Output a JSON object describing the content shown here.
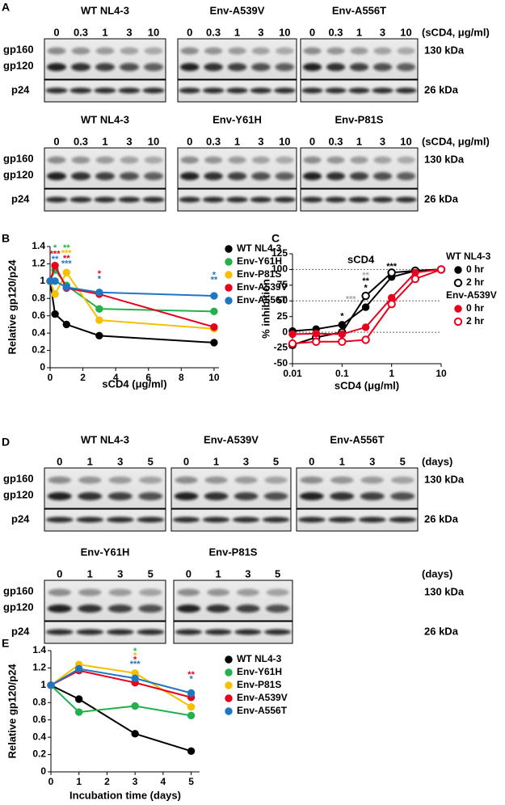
{
  "panel_labels": [
    "A",
    "B",
    "C",
    "D",
    "E"
  ],
  "blots": [
    {
      "groups": [
        "WT NL4-3",
        "Env-A539V",
        "Env-A556T"
      ],
      "lanes": [
        "0",
        "0.3",
        "1",
        "3",
        "10"
      ],
      "unit": "(sCD4, μg/ml)",
      "bands": [
        "gp160",
        "gp120"
      ],
      "loading": "p24",
      "sizes": [
        "130 kDa",
        "26 kDa"
      ]
    },
    {
      "groups": [
        "WT NL4-3",
        "Env-Y61H",
        "Env-P81S"
      ],
      "lanes": [
        "0",
        "0.3",
        "1",
        "3",
        "10"
      ],
      "unit": "(sCD4, μg/ml)",
      "bands": [
        "gp160",
        "gp120"
      ],
      "loading": "p24",
      "sizes": [
        "130 kDa",
        "26 kDa"
      ]
    },
    {
      "groups": [
        "WT NL4-3",
        "Env-A539V",
        "Env-A556T"
      ],
      "lanes": [
        "0",
        "1",
        "3",
        "5"
      ],
      "unit": "(days)",
      "bands": [
        "gp160",
        "gp120"
      ],
      "loading": "p24",
      "sizes": [
        "130 kDa",
        "26 kDa"
      ]
    },
    {
      "groups": [
        "Env-Y61H",
        "Env-P81S"
      ],
      "lanes": [
        "0",
        "1",
        "3",
        "5"
      ],
      "unit": "(days)",
      "bands": [
        "gp160",
        "gp120"
      ],
      "loading": "p24",
      "sizes": [
        "130 kDa",
        "26 kDa"
      ]
    }
  ],
  "chart_data": [
    {
      "type": "line",
      "x_label": "sCD4 (μg/ml)",
      "y_label": "Relative gp120/p24",
      "x": [
        0,
        0.3,
        1,
        3,
        10
      ],
      "xlim": [
        0,
        10.3
      ],
      "xticks": [
        0,
        2,
        4,
        6,
        8,
        10
      ],
      "ylim": [
        0,
        1.4
      ],
      "yticks": [
        0,
        0.2,
        0.4,
        0.6,
        0.8,
        1,
        1.2,
        1.4
      ],
      "series": [
        {
          "name": "WT NL4-3",
          "color": "#000000",
          "values": [
            1,
            0.62,
            0.5,
            0.37,
            0.29
          ]
        },
        {
          "name": "Env-Y61H",
          "color": "#22b14c",
          "values": [
            1,
            1.13,
            0.95,
            0.68,
            0.65
          ]
        },
        {
          "name": "Env-P81S",
          "color": "#f5c000",
          "values": [
            1,
            0.85,
            1.1,
            0.55,
            0.45
          ]
        },
        {
          "name": "Env-A539V",
          "color": "#e8001c",
          "values": [
            1,
            1.18,
            0.92,
            0.85,
            0.47
          ]
        },
        {
          "name": "Env-A556T",
          "color": "#1f77c4",
          "values": [
            1,
            1.0,
            0.93,
            0.87,
            0.83
          ]
        }
      ],
      "annotations": [
        {
          "x": 0.3,
          "y": 1.38,
          "text": "*",
          "color": "#22b14c"
        },
        {
          "x": 0.3,
          "y": 1.31,
          "text": "***",
          "color": "#e8001c"
        },
        {
          "x": 0.3,
          "y": 1.25,
          "text": "**",
          "color": "#1f77c4"
        },
        {
          "x": 1,
          "y": 1.38,
          "text": "**",
          "color": "#22b14c"
        },
        {
          "x": 1,
          "y": 1.32,
          "text": "***",
          "color": "#f5c000"
        },
        {
          "x": 1,
          "y": 1.26,
          "text": "**",
          "color": "#e8001c"
        },
        {
          "x": 1,
          "y": 1.2,
          "text": "***",
          "color": "#1f77c4"
        },
        {
          "x": 3,
          "y": 1.08,
          "text": "*",
          "color": "#e8001c"
        },
        {
          "x": 3,
          "y": 1.02,
          "text": "*",
          "color": "#1f77c4"
        },
        {
          "x": 10,
          "y": 1.07,
          "text": "*",
          "color": "#1f77c4"
        },
        {
          "x": 10,
          "y": 1.01,
          "text": "**",
          "color": "#1f77c4"
        }
      ]
    },
    {
      "type": "line",
      "title": "sCD4",
      "x_label": "sCD4 (μg/ml)",
      "y_label": "% inhibition",
      "log_x": true,
      "x": [
        0.01,
        0.03,
        0.1,
        0.3,
        1,
        3,
        10
      ],
      "xlim": [
        0.01,
        10
      ],
      "xticks": [
        0.01,
        0.1,
        1,
        10
      ],
      "ylim": [
        -50,
        125
      ],
      "yticks": [
        -50,
        -25,
        0,
        25,
        50,
        75,
        100,
        125
      ],
      "reference_lines": [
        0,
        50,
        100
      ],
      "groups": [
        {
          "name": "WT NL4-3",
          "series": [
            {
              "name": "0 hr",
              "color": "#000000",
              "marker": "filled",
              "values": [
                2,
                5,
                12,
                40,
                88,
                98,
                100
              ]
            },
            {
              "name": "2 hr",
              "color": "#000000",
              "marker": "open",
              "values": [
                -20,
                -8,
                0,
                58,
                95,
                98,
                100
              ]
            }
          ]
        },
        {
          "name": "Env-A539V",
          "series": [
            {
              "name": "0 hr",
              "color": "#e8001c",
              "marker": "filled",
              "values": [
                -3,
                -2,
                -3,
                8,
                55,
                95,
                100
              ]
            },
            {
              "name": "2 hr",
              "color": "#e8001c",
              "marker": "open",
              "values": [
                -18,
                -15,
                -15,
                -12,
                45,
                85,
                100
              ]
            }
          ]
        }
      ],
      "annotations": [
        {
          "x": 0.1,
          "y": 25,
          "text": "*",
          "color": "#000000"
        },
        {
          "x": 0.15,
          "y": 52,
          "text": "***",
          "color": "#aaaaaa"
        },
        {
          "x": 0.3,
          "y": 90,
          "text": "**",
          "color": "#aaaaaa"
        },
        {
          "x": 0.3,
          "y": 81,
          "text": "**",
          "color": "#000000"
        },
        {
          "x": 0.3,
          "y": 70,
          "text": "*",
          "color": "#000000"
        },
        {
          "x": 1,
          "y": 104,
          "text": "***",
          "color": "#000000"
        }
      ]
    },
    {
      "type": "line",
      "x_label": "Incubation time (days)",
      "y_label": "Relative gp120/p24",
      "x": [
        0,
        1,
        3,
        5
      ],
      "xlim": [
        0,
        5.3
      ],
      "xticks": [
        0,
        1,
        2,
        3,
        4,
        5
      ],
      "ylim": [
        0,
        1.4
      ],
      "yticks": [
        0,
        0.2,
        0.4,
        0.6,
        0.8,
        1,
        1.2,
        1.4
      ],
      "series": [
        {
          "name": "WT NL4-3",
          "color": "#000000",
          "values": [
            1,
            0.84,
            0.44,
            0.24
          ]
        },
        {
          "name": "Env-Y61H",
          "color": "#22b14c",
          "values": [
            1,
            0.69,
            0.76,
            0.65
          ]
        },
        {
          "name": "Env-P81S",
          "color": "#f5c000",
          "values": [
            1,
            1.24,
            1.14,
            0.75
          ]
        },
        {
          "name": "Env-A539V",
          "color": "#e8001c",
          "values": [
            1,
            1.17,
            1.03,
            0.86
          ]
        },
        {
          "name": "Env-A556T",
          "color": "#1f77c4",
          "values": [
            1,
            1.19,
            1.08,
            0.91
          ]
        }
      ],
      "annotations": [
        {
          "x": 3,
          "y": 1.39,
          "text": "*",
          "color": "#22b14c"
        },
        {
          "x": 3,
          "y": 1.34,
          "text": "*",
          "color": "#f5c000"
        },
        {
          "x": 3,
          "y": 1.29,
          "text": "*",
          "color": "#e8001c"
        },
        {
          "x": 3,
          "y": 1.24,
          "text": "***",
          "color": "#1f77c4"
        },
        {
          "x": 5,
          "y": 1.12,
          "text": "**",
          "color": "#e8001c"
        },
        {
          "x": 5,
          "y": 1.07,
          "text": "*",
          "color": "#1f77c4"
        }
      ]
    }
  ]
}
